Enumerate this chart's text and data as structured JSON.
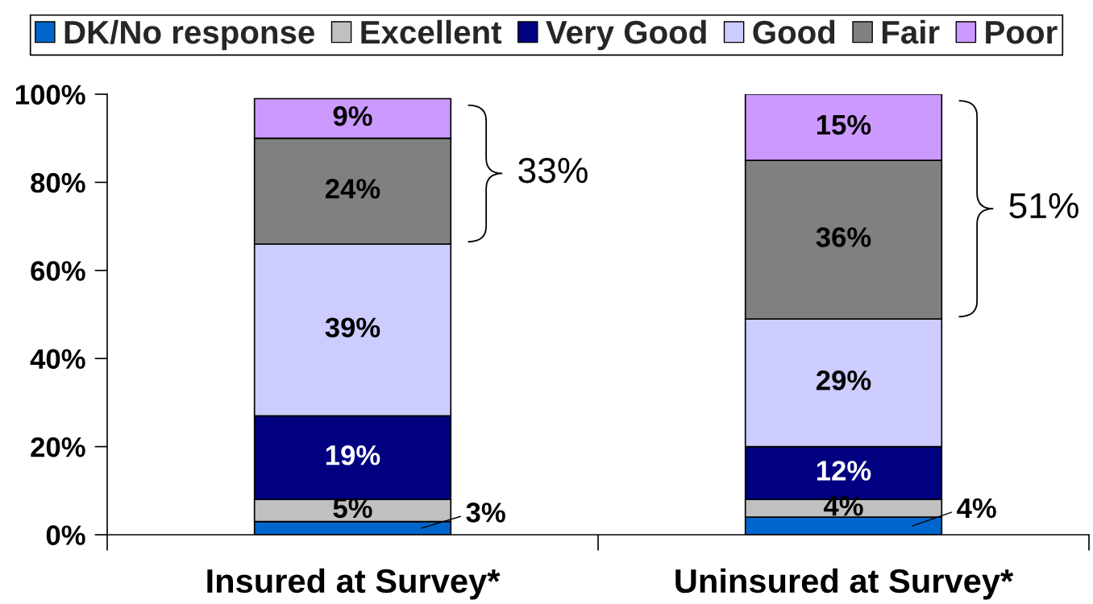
{
  "chart_data": {
    "type": "bar",
    "stacked": true,
    "categories": [
      "Insured at Survey*",
      "Uninsured at Survey*"
    ],
    "series": [
      {
        "name": "DK/No response",
        "color": "#0066cc",
        "values": [
          3,
          4
        ],
        "value_labels": [
          "3%",
          "4%"
        ]
      },
      {
        "name": "Excellent",
        "color": "#c0c0c0",
        "values": [
          5,
          4
        ],
        "value_labels": [
          "5%",
          "4%"
        ]
      },
      {
        "name": "Very Good",
        "color": "#000080",
        "values": [
          19,
          12
        ],
        "value_labels": [
          "19%",
          "12%"
        ]
      },
      {
        "name": "Good",
        "color": "#ccccff",
        "values": [
          39,
          29
        ],
        "value_labels": [
          "39%",
          "29%"
        ]
      },
      {
        "name": "Fair",
        "color": "#808080",
        "values": [
          24,
          36
        ],
        "value_labels": [
          "24%",
          "36%"
        ]
      },
      {
        "name": "Poor",
        "color": "#cc99ff",
        "values": [
          9,
          15
        ],
        "value_labels": [
          "9%",
          "15%"
        ]
      }
    ],
    "ylim": [
      0,
      100
    ],
    "yticks": [
      {
        "value": 0,
        "label": "0%"
      },
      {
        "value": 20,
        "label": "20%"
      },
      {
        "value": 40,
        "label": "40%"
      },
      {
        "value": 60,
        "label": "60%"
      },
      {
        "value": 80,
        "label": "80%"
      },
      {
        "value": 100,
        "label": "100%"
      }
    ],
    "legend": "top",
    "annotations": [
      "33%",
      "51%"
    ]
  }
}
